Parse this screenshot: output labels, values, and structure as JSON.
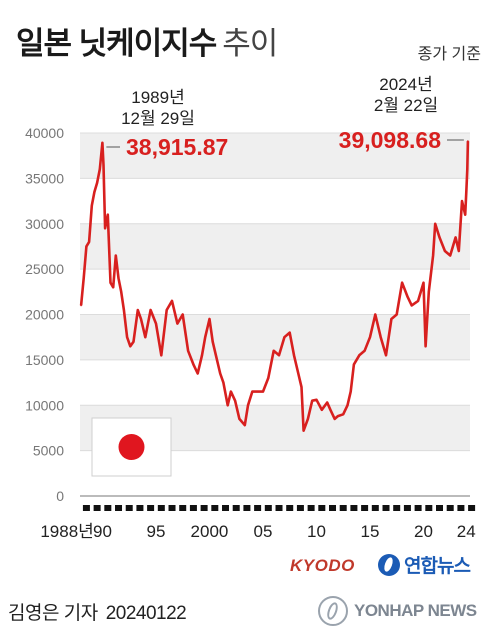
{
  "header": {
    "title": "일본 닛케이지수",
    "subtitle": "추이",
    "basis_note": "종가 기준"
  },
  "chart_data": {
    "type": "line",
    "x": [
      1988.0,
      1988.25,
      1988.5,
      1988.75,
      1989.0,
      1989.25,
      1989.5,
      1989.75,
      1989.99,
      1990.1,
      1990.25,
      1990.5,
      1990.75,
      1991.0,
      1991.25,
      1991.5,
      1991.75,
      1992.0,
      1992.3,
      1992.6,
      1992.9,
      1993.3,
      1993.6,
      1994.0,
      1994.5,
      1995.0,
      1995.5,
      1996.0,
      1996.5,
      1997.0,
      1997.5,
      1998.0,
      1998.5,
      1998.9,
      1999.3,
      1999.6,
      2000.0,
      2000.3,
      2000.6,
      2001.0,
      2001.3,
      2001.7,
      2002.0,
      2002.4,
      2002.8,
      2003.3,
      2003.6,
      2004.0,
      2004.5,
      2005.0,
      2005.5,
      2006.0,
      2006.5,
      2007.0,
      2007.5,
      2007.9,
      2008.3,
      2008.6,
      2008.8,
      2009.2,
      2009.6,
      2010.0,
      2010.5,
      2011.0,
      2011.3,
      2011.7,
      2012.0,
      2012.5,
      2012.9,
      2013.2,
      2013.5,
      2014.0,
      2014.5,
      2015.0,
      2015.5,
      2016.0,
      2016.5,
      2017.0,
      2017.5,
      2018.0,
      2018.5,
      2018.9,
      2019.5,
      2020.0,
      2020.2,
      2020.5,
      2020.9,
      2021.1,
      2021.5,
      2022.0,
      2022.5,
      2023.0,
      2023.3,
      2023.6,
      2023.9,
      2024.0,
      2024.1,
      2024.15
    ],
    "values": [
      21000,
      24000,
      27500,
      28000,
      32000,
      33500,
      34500,
      36000,
      38915.87,
      36500,
      29500,
      31000,
      23500,
      23000,
      26500,
      24000,
      22500,
      20500,
      17500,
      16500,
      17000,
      20500,
      19500,
      17500,
      20500,
      19000,
      15500,
      20500,
      21500,
      19000,
      20000,
      16000,
      14500,
      13500,
      15500,
      17500,
      19500,
      17000,
      15500,
      13500,
      12500,
      10000,
      11500,
      10500,
      8500,
      7800,
      10000,
      11500,
      11500,
      11500,
      13000,
      16000,
      15500,
      17500,
      18000,
      15500,
      13500,
      12000,
      7200,
      8500,
      10500,
      10600,
      9500,
      10300,
      9500,
      8500,
      8800,
      9000,
      10000,
      11500,
      14500,
      15500,
      16000,
      17500,
      20000,
      17500,
      15500,
      19500,
      20000,
      23500,
      22000,
      21000,
      21500,
      23500,
      16500,
      22500,
      26500,
      30000,
      28500,
      27000,
      26500,
      28500,
      27000,
      32500,
      31000,
      33500,
      36000,
      39098.68
    ],
    "x_ticks": [
      "1988년",
      "90",
      "95",
      "2000",
      "05",
      "10",
      "15",
      "20",
      "24"
    ],
    "x_tick_positions": [
      1988,
      1990,
      1995,
      2000,
      2005,
      2010,
      2015,
      2020,
      2024
    ],
    "y_ticks": [
      "0",
      "5000",
      "10000",
      "15000",
      "20000",
      "25000",
      "30000",
      "35000",
      "40000"
    ],
    "xlim": [
      1987.9,
      2024.35
    ],
    "ylim": [
      0,
      40000
    ],
    "color": "#d8201f",
    "annotations": [
      {
        "date_line1": "1989년",
        "date_line2": "12월 29일",
        "value_text": "38,915.87",
        "x": 1989.99,
        "y": 38915.87
      },
      {
        "date_line1": "2024년",
        "date_line2": "2월 22일",
        "value_text": "39,098.68",
        "x": 2024.15,
        "y": 39098.68
      }
    ]
  },
  "credits": {
    "kyodo": "KYODO",
    "yonhap_kr": "연합뉴스",
    "yonhap_en": "YONHAP NEWS"
  },
  "byline": {
    "reporter": "김영은 기자",
    "date": "20240122"
  }
}
